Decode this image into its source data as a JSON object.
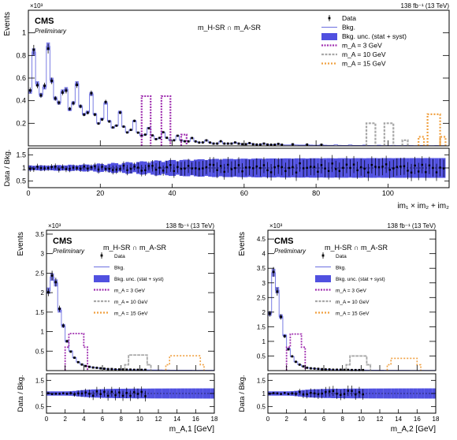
{
  "colors": {
    "data": "#000000",
    "bkg": "#6b6ee0",
    "bkg_unc": "#5050e0",
    "ma3": "#a030b0",
    "ma10": "#a8a8a8",
    "ma15": "#f0a040"
  },
  "chart_data": [
    {
      "id": "top",
      "type": "bar",
      "title": "m_H-SR ∩ m_A-SR",
      "lumi": "138 fb⁻¹ (13 TeV)",
      "cms": "CMS",
      "preliminary": "Preliminary",
      "ylabel": "Events",
      "exponent": "×10³",
      "xlabel": "im₁ × im₂ + im₂",
      "ratio_ylabel": "Data / Bkg.",
      "xlim": [
        0,
        117
      ],
      "ylim": [
        0,
        1.2
      ],
      "yticks": [
        "0.2",
        "0.4",
        "0.6",
        "0.8",
        "1"
      ],
      "xticks": [
        "0",
        "20",
        "40",
        "60",
        "80",
        "100"
      ],
      "ratio_ylim": [
        0.25,
        1.75
      ],
      "ratio_yticks": [
        "0.5",
        "1",
        "1.5"
      ],
      "legend": {
        "data": "Data",
        "bkg": "Bkg.",
        "bkg_unc": "Bkg. unc.  (stat + syst)",
        "ma3": "m_A = 3 GeV",
        "ma10": "m_A = 10 GeV",
        "ma15": "m_A = 15 GeV"
      },
      "bkg_values": [
        0.48,
        0.83,
        0.55,
        0.45,
        0.52,
        0.88,
        0.58,
        0.42,
        0.38,
        0.48,
        0.5,
        0.32,
        0.38,
        0.55,
        0.35,
        0.28,
        0.3,
        0.46,
        0.28,
        0.2,
        0.24,
        0.38,
        0.22,
        0.16,
        0.18,
        0.3,
        0.17,
        0.12,
        0.14,
        0.22,
        0.12,
        0.09,
        0.1,
        0.16,
        0.09,
        0.06,
        0.07,
        0.12,
        0.07,
        0.05,
        0.05,
        0.09,
        0.05,
        0.04,
        0.04,
        0.07,
        0.04,
        0.03,
        0.03,
        0.05,
        0.03,
        0.02,
        0.02,
        0.04,
        0.02,
        0.02,
        0.02,
        0.03,
        0.02,
        0.015,
        0.015,
        0.025,
        0.015,
        0.012,
        0.012,
        0.02,
        0.012,
        0.01,
        0.01,
        0.018,
        0.01,
        0.008,
        0.008,
        0.014,
        0.008,
        0.007,
        0.007,
        0.012,
        0.007,
        0.006,
        0.006,
        0.01,
        0.006,
        0.005,
        0.005,
        0.009,
        0.005,
        0.004,
        0.004,
        0.008,
        0.004,
        0.004,
        0.004,
        0.007,
        0.004,
        0.003,
        0.003,
        0.006,
        0.003,
        0.003,
        0.003,
        0.005,
        0.003,
        0.003,
        0.003,
        0.004,
        0.003,
        0.002,
        0.002,
        0.004,
        0.002,
        0.002,
        0.002,
        0.003,
        0.002,
        0.002
      ],
      "ma3": [
        {
          "x": 31.5,
          "w": 2.5,
          "v": 0.44
        },
        {
          "x": 37,
          "w": 2.5,
          "v": 0.44
        },
        {
          "x": 42.5,
          "w": 1.5,
          "v": 0.1
        }
      ],
      "ma10": [
        {
          "x": 94,
          "w": 2.5,
          "v": 0.2
        },
        {
          "x": 99,
          "w": 2.5,
          "v": 0.2
        },
        {
          "x": 104,
          "w": 1.5,
          "v": 0.05
        }
      ],
      "ma15": [
        {
          "x": 108.5,
          "w": 1.5,
          "v": 0.08
        },
        {
          "x": 111,
          "w": 3.5,
          "v": 0.28
        },
        {
          "x": 114.5,
          "w": 1.5,
          "v": 0.08
        }
      ]
    },
    {
      "id": "bl",
      "type": "bar",
      "title": "m_H-SR ∩ m_A-SR",
      "lumi": "138 fb⁻¹ (13 TeV)",
      "cms": "CMS",
      "preliminary": "Preliminary",
      "ylabel": "Events",
      "exponent": "×10³",
      "xlabel": "m_A,1 [GeV]",
      "ratio_ylabel": "Data / Bkg.",
      "xlim": [
        0,
        18
      ],
      "ylim": [
        0,
        3.6
      ],
      "yticks": [
        "0.5",
        "1",
        "1.5",
        "2",
        "2.5",
        "3",
        "3.5"
      ],
      "xticks": [
        "0",
        "2",
        "4",
        "6",
        "8",
        "10",
        "12",
        "14",
        "16",
        "18"
      ],
      "ratio_ylim": [
        0.25,
        1.75
      ],
      "ratio_yticks": [
        "0.5",
        "1",
        "1.5"
      ],
      "legend": {
        "data": "Data",
        "bkg": "Bkg.",
        "bkg_unc": "Bkg. unc.  (stat + syst)",
        "ma3": "m_A = 3 GeV",
        "ma10": "m_A = 10 GeV",
        "ma15": "m_A = 15 GeV"
      },
      "bin_width": 0.4,
      "bkg_values": [
        2.05,
        2.4,
        2.25,
        1.55,
        1.15,
        0.75,
        0.5,
        0.33,
        0.22,
        0.16,
        0.12,
        0.1,
        0.08,
        0.07,
        0.06,
        0.05,
        0.04,
        0.04,
        0.03,
        0.03,
        0.03,
        0.025,
        0.025,
        0.02,
        0.02,
        0.02,
        0.02,
        0.018,
        0.016,
        0.015,
        0.015,
        0.014,
        0.013,
        0.012,
        0.012,
        0.011,
        0.01,
        0.01,
        0.01,
        0.009,
        0.009,
        0.009,
        0.008,
        0.008,
        0.008
      ],
      "sig_ma3": {
        "x0": 2.4,
        "x1": 4.0,
        "v": 0.95,
        "edge": 0.6
      },
      "sig_ma10": {
        "x0": 8.8,
        "x1": 10.8,
        "v": 0.4,
        "edge": 0.15
      },
      "sig_ma15": {
        "x0": 13.2,
        "x1": 16.5,
        "v": 0.38,
        "edge": 0.15
      }
    },
    {
      "id": "br",
      "type": "bar",
      "title": "m_H-SR ∩ m_A-SR",
      "lumi": "138 fb⁻¹ (13 TeV)",
      "cms": "CMS",
      "preliminary": "Preliminary",
      "ylabel": "Events",
      "exponent": "×10³",
      "xlabel": "m_A,2 [GeV]",
      "ratio_ylabel": "Data / Bkg.",
      "xlim": [
        0,
        18
      ],
      "ylim": [
        0,
        4.8
      ],
      "yticks": [
        "0.5",
        "1",
        "1.5",
        "2",
        "2.5",
        "3",
        "3.5",
        "4",
        "4.5"
      ],
      "xticks": [
        "0",
        "2",
        "4",
        "6",
        "8",
        "10",
        "12",
        "14",
        "16",
        "18"
      ],
      "ratio_ylim": [
        0.25,
        1.75
      ],
      "ratio_yticks": [
        "0.5",
        "1",
        "1.5"
      ],
      "legend": {
        "data": "Data",
        "bkg": "Bkg.",
        "bkg_unc": "Bkg. unc.  (stat + syst)",
        "ma3": "m_A = 3 GeV",
        "ma10": "m_A = 10 GeV",
        "ma15": "m_A = 15 GeV"
      },
      "bin_width": 0.4,
      "bkg_values": [
        1.95,
        3.35,
        2.75,
        1.85,
        1.2,
        0.75,
        0.48,
        0.3,
        0.2,
        0.14,
        0.1,
        0.08,
        0.07,
        0.06,
        0.05,
        0.04,
        0.04,
        0.03,
        0.03,
        0.03,
        0.025,
        0.025,
        0.02,
        0.02,
        0.02,
        0.02,
        0.018,
        0.016,
        0.015,
        0.015,
        0.014,
        0.013,
        0.012,
        0.012,
        0.011,
        0.01,
        0.01,
        0.01,
        0.009,
        0.009,
        0.009,
        0.008,
        0.008,
        0.008,
        0.008
      ],
      "sig_ma3": {
        "x0": 2.4,
        "x1": 3.6,
        "v": 1.25,
        "edge": 0.8
      },
      "sig_ma10": {
        "x0": 8.8,
        "x1": 10.6,
        "v": 0.5,
        "edge": 0.2
      },
      "sig_ma15": {
        "x0": 13.2,
        "x1": 16.0,
        "v": 0.42,
        "edge": 0.2
      }
    }
  ]
}
